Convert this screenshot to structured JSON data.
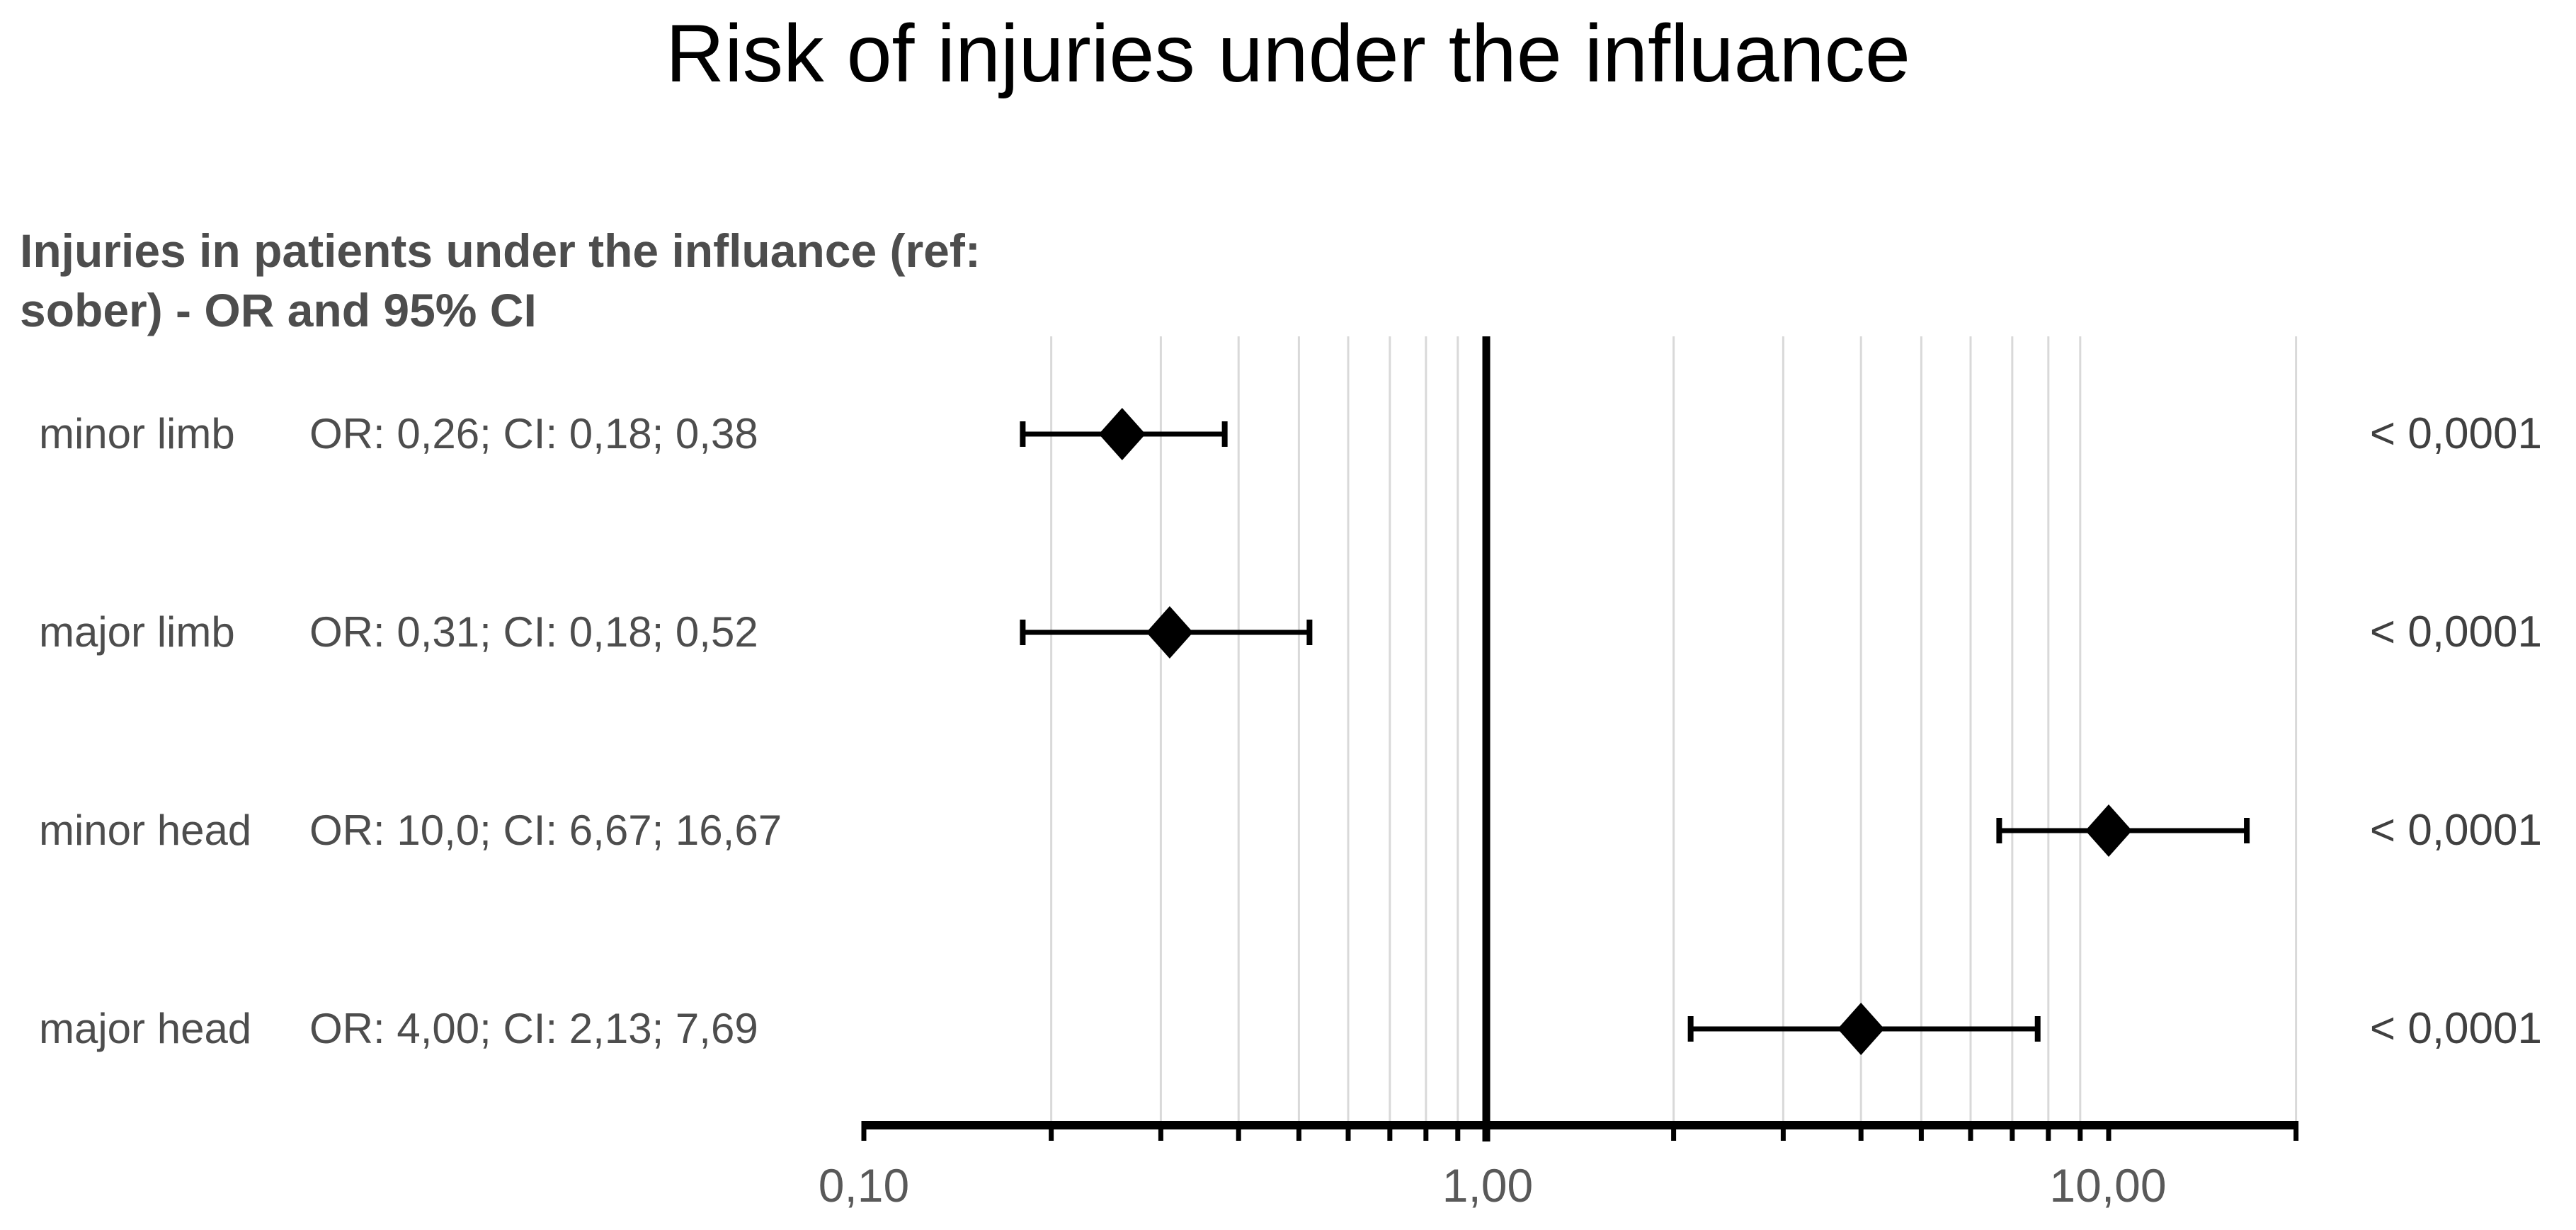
{
  "title": "Risk of injuries under the influance",
  "subtitle": {
    "line1": "Injuries in patients under the influance (ref:",
    "line2": "sober) - OR and 95% CI"
  },
  "chart_data": {
    "type": "scatter",
    "subtype": "forest-plot",
    "title": "Risk of injuries under the influance",
    "left_header": "Injuries in patients under the influance (ref: sober) - OR and 95% CI",
    "x_axis": {
      "scale": "log",
      "min": 0.1,
      "max": 20,
      "tick_labels": [
        {
          "value": 0.1,
          "label": "0,10"
        },
        {
          "value": 1.0,
          "label": "1,00"
        },
        {
          "value": 10.0,
          "label": "10,00"
        }
      ],
      "minor_tick_values": [
        0.1,
        0.2,
        0.3,
        0.4,
        0.5,
        0.6,
        0.7,
        0.8,
        0.9,
        2,
        3,
        4,
        5,
        6,
        7,
        8,
        9,
        10,
        20
      ],
      "gridline_values": [
        0.2,
        0.3,
        0.4,
        0.5,
        0.6,
        0.7,
        0.8,
        0.9,
        2,
        3,
        4,
        5,
        6,
        7,
        8,
        9,
        20
      ],
      "reference_line": 1.0,
      "grid": "minor-vertical-only",
      "legend": "none"
    },
    "rows": [
      {
        "label": "minor limb",
        "or_text": "OR: 0,26; CI: 0,18; 0,38",
        "or": 0.26,
        "ci_low": 0.18,
        "ci_high": 0.38,
        "p_value": "< 0,0001"
      },
      {
        "label": "major limb",
        "or_text": "OR: 0,31; CI: 0,18; 0,52",
        "or": 0.31,
        "ci_low": 0.18,
        "ci_high": 0.52,
        "p_value": "< 0,0001"
      },
      {
        "label": "minor head",
        "or_text": "OR: 10,0; CI: 6,67; 16,67",
        "or": 10.0,
        "ci_low": 6.67,
        "ci_high": 16.67,
        "p_value": "< 0,0001"
      },
      {
        "label": "major head",
        "or_text": "OR: 4,00; CI: 2,13; 7,69",
        "or": 4.0,
        "ci_low": 2.13,
        "ci_high": 7.69,
        "p_value": "< 0,0001"
      }
    ],
    "colors": {
      "marker": "#000000",
      "error_bar": "#000000",
      "reference_line": "#000000",
      "axis_line": "#000000",
      "gridline": "#d9d9d9",
      "title_text": "#000000",
      "header_text": "#4d4d4d",
      "row_text": "#4d4d4d",
      "p_value_text": "#404040",
      "tick_label_text": "#595959",
      "background": "#ffffff"
    }
  }
}
